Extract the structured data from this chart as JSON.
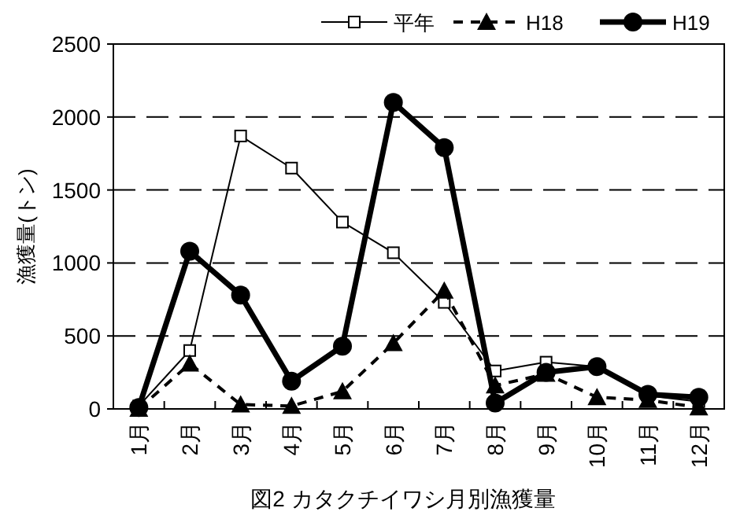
{
  "chart_data": {
    "type": "line",
    "title": "図2 カタクチイワシ月別漁獲量",
    "ylabel": "漁獲量(トン)",
    "categories": [
      "1月",
      "2月",
      "3月",
      "4月",
      "5月",
      "6月",
      "7月",
      "8月",
      "9月",
      "10月",
      "11月",
      "12月"
    ],
    "series": [
      {
        "name": "平年",
        "color": "#000000",
        "marker": "square",
        "line_style": "solid",
        "values": [
          20,
          400,
          1870,
          1650,
          1280,
          1070,
          730,
          260,
          320,
          290,
          90,
          50
        ]
      },
      {
        "name": "H18",
        "color": "#000000",
        "marker": "triangle",
        "line_style": "dashed",
        "values": [
          0,
          310,
          30,
          20,
          120,
          450,
          810,
          160,
          240,
          80,
          60,
          10
        ]
      },
      {
        "name": "H19",
        "color": "#000000",
        "marker": "circle",
        "line_style": "solid",
        "values": [
          10,
          1080,
          780,
          190,
          430,
          2100,
          1790,
          40,
          250,
          290,
          100,
          80
        ]
      }
    ],
    "ylim": [
      0,
      2500
    ],
    "yticks": [
      0,
      500,
      1000,
      1500,
      2000,
      2500
    ],
    "grid": "y",
    "legend": "top right"
  }
}
